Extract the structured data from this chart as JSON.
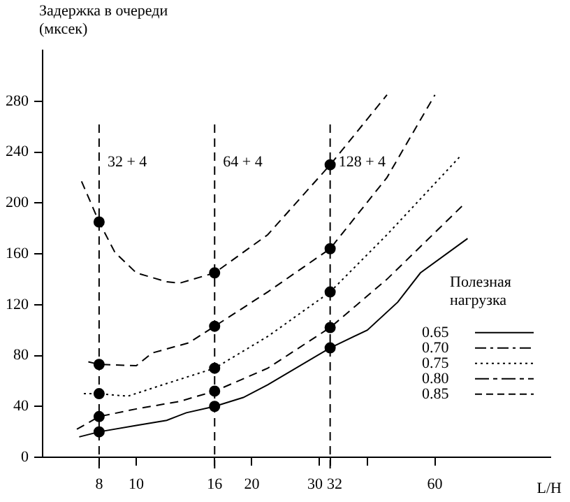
{
  "chart_data": {
    "type": "line",
    "ylabel": "Задержка в очереди (мксек)",
    "xlabel": "L/H",
    "legend_title": "Полезная нагрузка",
    "log": "x",
    "xlim": [
      5.7,
      120
    ],
    "xticks": [
      8,
      10,
      16,
      20,
      30,
      32,
      {
        "value": 40,
        "label": null
      },
      60
    ],
    "ylim": [
      0,
      320
    ],
    "yticks": [
      0,
      40,
      80,
      120,
      160,
      200,
      240,
      280
    ],
    "grid": false,
    "legend": "right",
    "ref_lines": [
      {
        "axis": "x",
        "value": 8,
        "line_style": "dashed"
      },
      {
        "axis": "x",
        "value": 16,
        "line_style": "dashed"
      },
      {
        "axis": "x",
        "value": 32,
        "line_style": "dashed"
      }
    ],
    "annotations": [
      {
        "text": "32 + 4",
        "x": 8,
        "y": 232
      },
      {
        "text": "64 + 4",
        "x": 16,
        "y": 232
      },
      {
        "text": "128 + 4",
        "x": 32,
        "y": 232
      }
    ],
    "series": [
      {
        "name": "0.65",
        "color": "#000000",
        "line_style": "solid",
        "x": [
          7.1,
          8,
          10,
          12,
          13.5,
          16,
          19,
          22,
          32,
          40,
          48,
          55,
          73
        ],
        "values": [
          16,
          20,
          25,
          29,
          35,
          40,
          47,
          57,
          86,
          100,
          122,
          145,
          172
        ]
      },
      {
        "name": "0.70",
        "color": "#000000",
        "line_style": "dashed",
        "x": [
          7,
          8,
          10,
          13,
          16,
          22,
          32,
          45,
          72
        ],
        "values": [
          22,
          32,
          38,
          44,
          52,
          70,
          102,
          140,
          200
        ]
      },
      {
        "name": "0.75",
        "color": "#000000",
        "line_style": "dotted",
        "x": [
          7.3,
          8,
          9.5,
          12,
          16,
          22,
          32,
          45,
          70
        ],
        "values": [
          50,
          50,
          48,
          58,
          70,
          95,
          130,
          175,
          237
        ]
      },
      {
        "name": "0.80",
        "color": "#000000",
        "line_style": "dashed",
        "x": [
          7.5,
          8,
          10,
          11,
          13.7,
          16,
          22,
          32,
          45,
          60
        ],
        "values": [
          75,
          73,
          72,
          82,
          90,
          103,
          130,
          164,
          220,
          285
        ]
      },
      {
        "name": "0.85",
        "color": "#000000",
        "line_style": "dashed",
        "x": [
          7.2,
          8,
          8.8,
          10,
          12,
          13,
          16,
          22,
          32,
          45
        ],
        "values": [
          217,
          185,
          161,
          145,
          138,
          137,
          145,
          175,
          230,
          285
        ]
      },
      {
        "type": "scatter",
        "marker": "circle",
        "color": "#000000",
        "x": [
          8,
          8,
          8,
          8,
          8,
          16,
          16,
          16,
          16,
          16,
          32,
          32,
          32,
          32,
          32
        ],
        "values": [
          20,
          32,
          50,
          73,
          185,
          40,
          52,
          70,
          103,
          145,
          86,
          102,
          130,
          164,
          230
        ]
      }
    ]
  }
}
